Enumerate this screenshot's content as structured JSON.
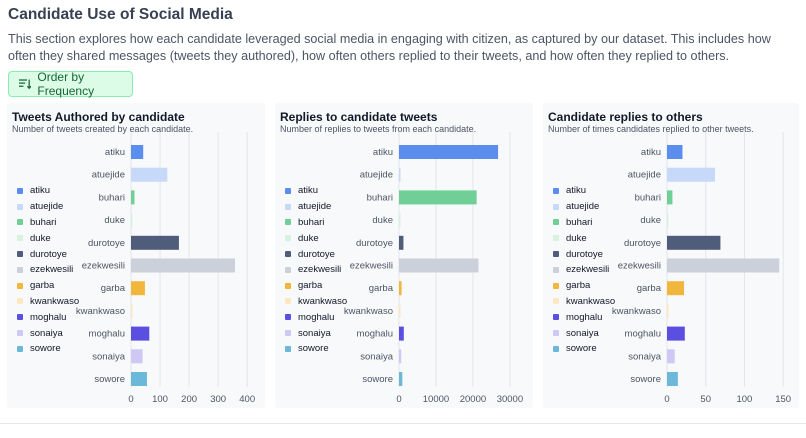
{
  "page": {
    "title": "Candidate Use of Social Media",
    "intro": "This section explores how each candidate leveraged social media in engaging with citizen, as captured by our dataset. This includes how often they shared messages (tweets they authored), how often others replied to their tweets, and how often they replied to others.",
    "order_button_label": "Order by Frequency",
    "order_button_icon": "sort-descending-icon"
  },
  "legend": [
    {
      "label": "atiku",
      "color": "#5b8def"
    },
    {
      "label": "atuejide",
      "color": "#c7d9f9"
    },
    {
      "label": "buhari",
      "color": "#6fcf97"
    },
    {
      "label": "duke",
      "color": "#d6f3e0"
    },
    {
      "label": "durotoye",
      "color": "#4f5d7a"
    },
    {
      "label": "ezekwesili",
      "color": "#cbd0da"
    },
    {
      "label": "garba",
      "color": "#f1b73d"
    },
    {
      "label": "kwankwaso",
      "color": "#fbe8c3"
    },
    {
      "label": "moghalu",
      "color": "#5a4fe0"
    },
    {
      "label": "sonaiya",
      "color": "#cfc8f5"
    },
    {
      "label": "sowore",
      "color": "#6bb8d9"
    }
  ],
  "chart_data": [
    {
      "type": "bar",
      "orientation": "horizontal",
      "title": "Tweets Authored by candidate",
      "subtitle": "Number of tweets created by each candidate.",
      "categories": [
        "atiku",
        "atuejide",
        "buhari",
        "duke",
        "durotoye",
        "ezekwesili",
        "garba",
        "kwankwaso",
        "moghalu",
        "sonaiya",
        "sowore"
      ],
      "values": [
        42,
        125,
        12,
        3,
        165,
        358,
        48,
        5,
        63,
        40,
        55
      ],
      "xlim": [
        0,
        420
      ],
      "xticks": [
        0,
        100,
        200,
        300,
        400
      ],
      "grid": true,
      "legend": "left"
    },
    {
      "type": "bar",
      "orientation": "horizontal",
      "title": "Replies to candidate tweets",
      "subtitle": "Number of replies to tweets from each candidate.",
      "categories": [
        "atiku",
        "atuejide",
        "buhari",
        "duke",
        "durotoye",
        "ezekwesili",
        "garba",
        "kwankwaso",
        "moghalu",
        "sonaiya",
        "sowore"
      ],
      "values": [
        26800,
        300,
        21000,
        100,
        1200,
        21500,
        700,
        150,
        1300,
        600,
        900
      ],
      "xlim": [
        0,
        33000
      ],
      "xticks": [
        0,
        10000,
        20000,
        30000
      ],
      "grid": true,
      "legend": "left"
    },
    {
      "type": "bar",
      "orientation": "horizontal",
      "title": "Candidate replies to others",
      "subtitle": "Number of times candidates replied to other tweets.",
      "categories": [
        "atiku",
        "atuejide",
        "buhari",
        "duke",
        "durotoye",
        "ezekwesili",
        "garba",
        "kwankwaso",
        "moghalu",
        "sonaiya",
        "sowore"
      ],
      "values": [
        20,
        62,
        7,
        1,
        69,
        145,
        22,
        1,
        23,
        10,
        14
      ],
      "xlim": [
        0,
        155
      ],
      "xticks": [
        0,
        50,
        100,
        150
      ],
      "grid": true,
      "legend": "left"
    }
  ]
}
